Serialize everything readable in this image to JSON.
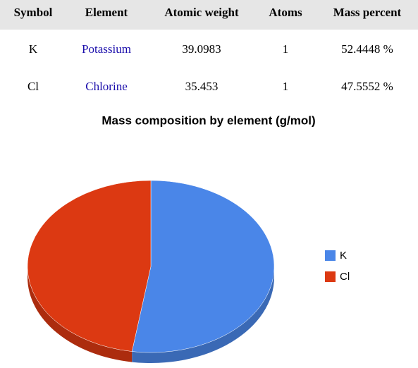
{
  "table": {
    "headers": [
      "Symbol",
      "Element",
      "Atomic weight",
      "Atoms",
      "Mass percent"
    ],
    "rows": [
      [
        "K",
        "Potassium",
        "39.0983",
        "1",
        "52.4448 %"
      ],
      [
        "Cl",
        "Chlorine",
        "35.453",
        "1",
        "47.5552 %"
      ]
    ]
  },
  "chart_data": {
    "type": "pie",
    "title": "Mass composition by element (g/mol)",
    "categories": [
      "K",
      "Cl"
    ],
    "values": [
      39.0983,
      35.453
    ],
    "colors": [
      "#4a86e8",
      "#dc3912"
    ],
    "legend": "right"
  }
}
